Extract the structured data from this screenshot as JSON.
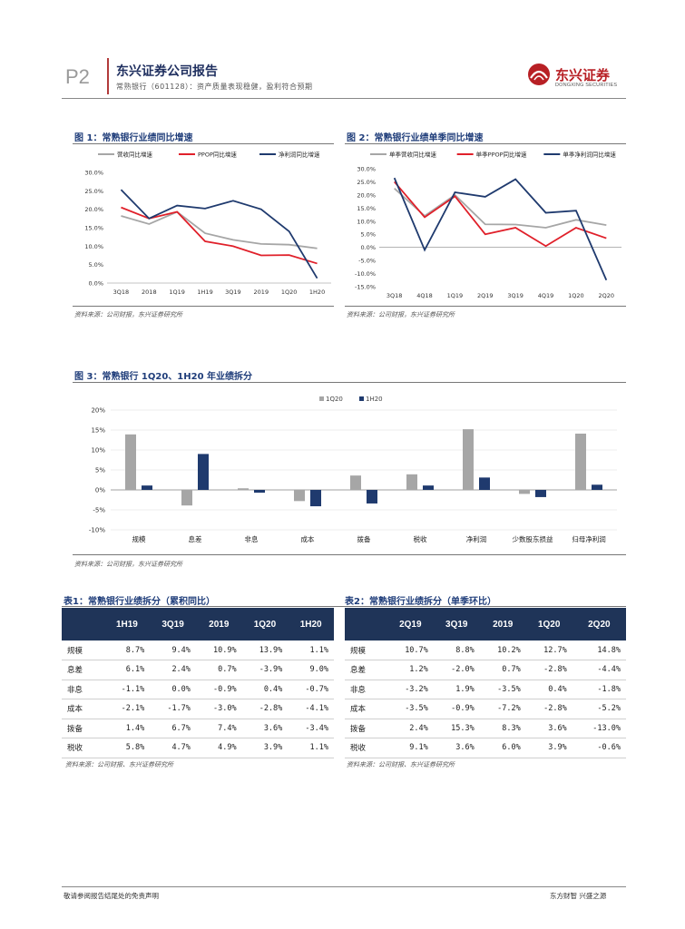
{
  "header": {
    "page_number": "P2",
    "report_title": "东兴证券公司报告",
    "subtitle": "常熟银行（601128）：资产质量表现稳健，盈利符合预期",
    "logo_cn": "东兴证券",
    "logo_en": "DONGXING SECURITIES"
  },
  "fig1": {
    "title": "图 1：常熟银行业绩同比增速",
    "source": "资料来源：公司财报，东兴证券研究所"
  },
  "fig2": {
    "title": "图 2：常熟银行业绩单季同比增速",
    "source": "资料来源：公司财报，东兴证券研究所"
  },
  "fig3": {
    "title": "图 3：常熟银行 1Q20、1H20 年业绩拆分",
    "source": "资料来源：公司财报，东兴证券研究所"
  },
  "chart_data": [
    {
      "type": "line",
      "categories": [
        "3Q18",
        "2018",
        "1Q19",
        "1H19",
        "3Q19",
        "2019",
        "1Q20",
        "1H20"
      ],
      "series": [
        {
          "name": "营收同比增速",
          "color": "#a6a6a6",
          "values": [
            18.2,
            16.0,
            19.3,
            13.5,
            11.7,
            10.6,
            10.4,
            9.4
          ]
        },
        {
          "name": "PPOP同比增速",
          "color": "#e0202a",
          "values": [
            20.5,
            17.5,
            19.3,
            11.3,
            10.0,
            7.5,
            7.6,
            5.3
          ]
        },
        {
          "name": "净利润同比增速",
          "color": "#1f3a6e",
          "values": [
            25.3,
            17.5,
            21.0,
            20.2,
            22.3,
            20.0,
            14.0,
            1.3
          ]
        }
      ],
      "ylim": [
        0,
        30
      ],
      "yticks": [
        "0.0%",
        "5.0%",
        "10.0%",
        "15.0%",
        "20.0%",
        "25.0%",
        "30.0%"
      ]
    },
    {
      "type": "line",
      "categories": [
        "3Q18",
        "4Q18",
        "1Q19",
        "2Q19",
        "3Q19",
        "4Q19",
        "1Q20",
        "2Q20"
      ],
      "series": [
        {
          "name": "单季营收同比增速",
          "color": "#a6a6a6",
          "values": [
            22.5,
            12.0,
            20.0,
            8.8,
            8.7,
            7.5,
            10.5,
            8.5
          ]
        },
        {
          "name": "单季PPOP同比增速",
          "color": "#e0202a",
          "values": [
            25.0,
            11.5,
            19.5,
            5.0,
            7.5,
            0.5,
            7.5,
            3.5
          ]
        },
        {
          "name": "单季净利润同比增速",
          "color": "#1f3a6e",
          "values": [
            26.5,
            -1.0,
            21.0,
            19.3,
            26.0,
            13.2,
            14.0,
            -12.5
          ]
        }
      ],
      "ylim": [
        -15,
        30
      ],
      "yticks": [
        "-15.0%",
        "-10.0%",
        "-5.0%",
        "0.0%",
        "5.0%",
        "10.0%",
        "15.0%",
        "20.0%",
        "25.0%",
        "30.0%"
      ]
    },
    {
      "type": "bar",
      "categories": [
        "规模",
        "息差",
        "非息",
        "成本",
        "拨备",
        "税收",
        "净利润",
        "少数股东损益",
        "归母净利润"
      ],
      "series": [
        {
          "name": "1Q20",
          "color": "#a6a6a6",
          "values": [
            13.9,
            -3.9,
            0.4,
            -2.8,
            3.6,
            3.9,
            15.2,
            -1.0,
            14.1
          ]
        },
        {
          "name": "1H20",
          "color": "#1f3a6e",
          "values": [
            1.1,
            9.0,
            -0.7,
            -4.1,
            -3.4,
            1.1,
            3.1,
            -1.8,
            1.3
          ]
        }
      ],
      "ylim": [
        -10,
        20
      ],
      "yticks": [
        "-10%",
        "-5%",
        "0%",
        "5%",
        "10%",
        "15%",
        "20%"
      ]
    }
  ],
  "table1": {
    "title": "表1：常熟银行业绩拆分（累积同比）",
    "headers": [
      "",
      "1H19",
      "3Q19",
      "2019",
      "1Q20",
      "1H20"
    ],
    "rows": [
      [
        "规模",
        "8.7%",
        "9.4%",
        "10.9%",
        "13.9%",
        "1.1%"
      ],
      [
        "息差",
        "6.1%",
        "2.4%",
        "0.7%",
        "-3.9%",
        "9.0%"
      ],
      [
        "非息",
        "-1.1%",
        "0.0%",
        "-0.9%",
        "0.4%",
        "-0.7%"
      ],
      [
        "成本",
        "-2.1%",
        "-1.7%",
        "-3.0%",
        "-2.8%",
        "-4.1%"
      ],
      [
        "拨备",
        "1.4%",
        "6.7%",
        "7.4%",
        "3.6%",
        "-3.4%"
      ],
      [
        "税收",
        "5.8%",
        "4.7%",
        "4.9%",
        "3.9%",
        "1.1%"
      ]
    ],
    "source": "资料来源：公司财报、东兴证券研究所"
  },
  "table2": {
    "title": "表2：常熟银行业绩拆分（单季环比）",
    "headers": [
      "",
      "2Q19",
      "3Q19",
      "2019",
      "1Q20",
      "2Q20"
    ],
    "rows": [
      [
        "规模",
        "10.7%",
        "8.8%",
        "10.2%",
        "12.7%",
        "14.8%"
      ],
      [
        "息差",
        "1.2%",
        "-2.0%",
        "0.7%",
        "-2.8%",
        "-4.4%"
      ],
      [
        "非息",
        "-3.2%",
        "1.9%",
        "-3.5%",
        "0.4%",
        "-1.8%"
      ],
      [
        "成本",
        "-3.5%",
        "-0.9%",
        "-7.2%",
        "-2.8%",
        "-5.2%"
      ],
      [
        "拨备",
        "2.4%",
        "15.3%",
        "8.3%",
        "3.6%",
        "-13.0%"
      ],
      [
        "税收",
        "9.1%",
        "3.6%",
        "6.0%",
        "3.9%",
        "-0.6%"
      ]
    ],
    "source": "资料来源：公司财报、东兴证券研究所"
  },
  "footer": {
    "left": "敬请参阅报告结尾处的免责声明",
    "right": "东方财智 兴盛之源"
  }
}
